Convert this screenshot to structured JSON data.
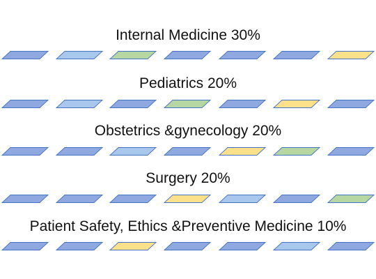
{
  "colors": {
    "blue": "#8fa9e0",
    "light_blue": "#a9c6ec",
    "green": "#b6d7a2",
    "yellow": "#fde08a",
    "stroke": "#4472c4"
  },
  "sections": [
    {
      "title": "Internal Medicine 30%",
      "tiles": [
        "blue",
        "light_blue",
        "green",
        "blue",
        "blue",
        "blue",
        "yellow"
      ]
    },
    {
      "title": "Pediatrics 20%",
      "tiles": [
        "blue",
        "light_blue",
        "blue",
        "green",
        "blue",
        "yellow",
        "blue"
      ]
    },
    {
      "title": "Obstetrics &gynecology 20%",
      "tiles": [
        "blue",
        "blue",
        "light_blue",
        "blue",
        "yellow",
        "green",
        "blue"
      ]
    },
    {
      "title": "Surgery 20%",
      "tiles": [
        "blue",
        "blue",
        "blue",
        "yellow",
        "light_blue",
        "blue",
        "green"
      ]
    },
    {
      "title": "Patient Safety, Ethics &Preventive Medicine 10%",
      "tiles": [
        "blue",
        "blue",
        "yellow",
        "blue",
        "blue",
        "light_blue",
        "blue"
      ]
    }
  ]
}
